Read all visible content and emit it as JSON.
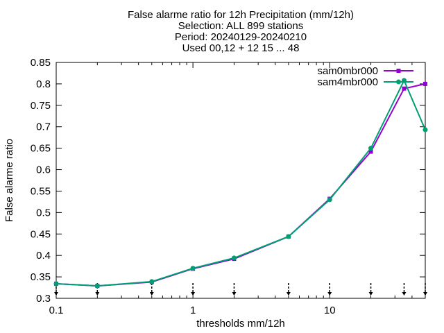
{
  "chart_data": {
    "type": "line",
    "title_lines": [
      "False alarme ratio  for 12h Precipitation (mm/12h)",
      "Selection: ALL    899 stations",
      "Period: 20240129-20240210",
      "Used 00,12 + 12 15 ... 48"
    ],
    "xlabel": "thresholds mm/12h",
    "ylabel": "False alarme ratio",
    "x_scale": "log",
    "xlim": [
      0.1,
      50
    ],
    "ylim": [
      0.3,
      0.85
    ],
    "x_ticks": [
      {
        "value": 0.1,
        "label": "0.1"
      },
      {
        "value": 1,
        "label": "1"
      },
      {
        "value": 10,
        "label": "10"
      }
    ],
    "y_ticks": [
      {
        "value": 0.3,
        "label": "0.3"
      },
      {
        "value": 0.35,
        "label": "0.35"
      },
      {
        "value": 0.4,
        "label": "0.4"
      },
      {
        "value": 0.45,
        "label": "0.45"
      },
      {
        "value": 0.5,
        "label": "0.5"
      },
      {
        "value": 0.55,
        "label": "0.55"
      },
      {
        "value": 0.6,
        "label": "0.6"
      },
      {
        "value": 0.65,
        "label": "0.65"
      },
      {
        "value": 0.7,
        "label": "0.7"
      },
      {
        "value": 0.75,
        "label": "0.75"
      },
      {
        "value": 0.8,
        "label": "0.8"
      },
      {
        "value": 0.85,
        "label": "0.85"
      }
    ],
    "threshold_markers": [
      0.1,
      0.2,
      0.5,
      1,
      2,
      5,
      10,
      20,
      35,
      50
    ],
    "x": [
      0.1,
      0.2,
      0.5,
      1,
      2,
      5,
      10,
      20,
      35,
      50
    ],
    "series": [
      {
        "name": "sam0mbr000",
        "color": "#9400d3",
        "values": [
          0.334,
          0.329,
          0.338,
          0.369,
          0.392,
          0.444,
          0.532,
          0.642,
          0.789,
          0.8
        ]
      },
      {
        "name": "sam4mbr000",
        "color": "#009e73",
        "values": [
          0.334,
          0.329,
          0.339,
          0.37,
          0.394,
          0.444,
          0.53,
          0.65,
          0.808,
          0.693
        ]
      }
    ],
    "legend_position": "top-right",
    "grid": false
  }
}
